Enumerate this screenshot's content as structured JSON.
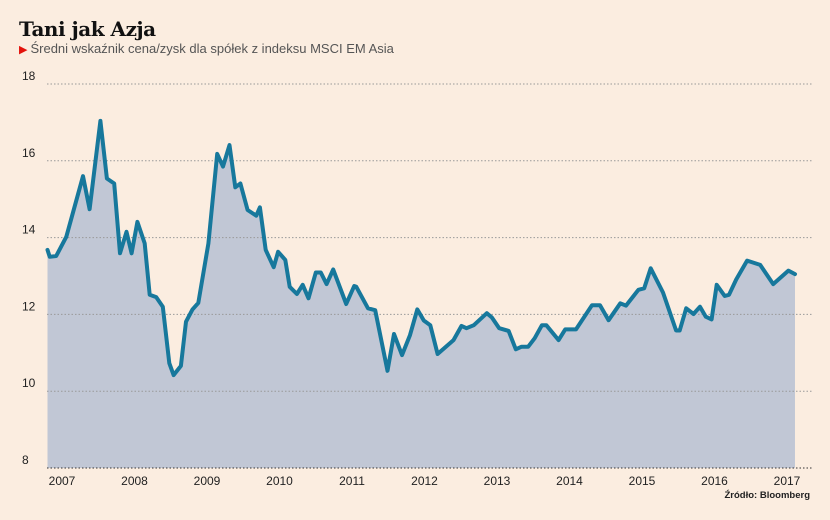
{
  "title": "Tani jak Azja",
  "subtitle": "Średni wskaźnik cena/zysk dla spółek z indeksu MSCI EM Asia",
  "source": "Źródło: Bloomberg",
  "colors": {
    "line": "#17789c",
    "fill": "#c1c7d5",
    "background": "#fbede0",
    "marker": "#e3120b"
  },
  "chart_data": {
    "type": "area",
    "title": "Tani jak Azja",
    "xlabel": "",
    "ylabel": "",
    "ylim": [
      8,
      18
    ],
    "xlim": [
      2006.8,
      2017.11
    ],
    "yticks": [
      "8",
      "10",
      "12",
      "14",
      "16",
      "18"
    ],
    "xticks": [
      "2007",
      "2008",
      "2009",
      "2010",
      "2011",
      "2012",
      "2013",
      "2014",
      "2015",
      "2016",
      "2017"
    ],
    "grid": true,
    "points": [
      [
        2006.8,
        13.68
      ],
      [
        2006.83,
        13.5
      ],
      [
        2006.92,
        13.52
      ],
      [
        2007.06,
        14.02
      ],
      [
        2007.29,
        15.6
      ],
      [
        2007.38,
        14.74
      ],
      [
        2007.53,
        17.04
      ],
      [
        2007.62,
        15.54
      ],
      [
        2007.72,
        15.41
      ],
      [
        2007.8,
        13.59
      ],
      [
        2007.89,
        14.15
      ],
      [
        2007.96,
        13.59
      ],
      [
        2008.04,
        14.41
      ],
      [
        2008.14,
        13.85
      ],
      [
        2008.21,
        12.51
      ],
      [
        2008.3,
        12.45
      ],
      [
        2008.39,
        12.2
      ],
      [
        2008.48,
        10.73
      ],
      [
        2008.54,
        10.42
      ],
      [
        2008.64,
        10.66
      ],
      [
        2008.71,
        11.81
      ],
      [
        2008.8,
        12.13
      ],
      [
        2008.88,
        12.3
      ],
      [
        2009.02,
        13.85
      ],
      [
        2009.14,
        16.18
      ],
      [
        2009.22,
        15.85
      ],
      [
        2009.31,
        16.41
      ],
      [
        2009.39,
        15.31
      ],
      [
        2009.46,
        15.41
      ],
      [
        2009.56,
        14.72
      ],
      [
        2009.68,
        14.57
      ],
      [
        2009.73,
        14.79
      ],
      [
        2009.81,
        13.68
      ],
      [
        2009.92,
        13.23
      ],
      [
        2009.98,
        13.63
      ],
      [
        2010.08,
        13.42
      ],
      [
        2010.14,
        12.72
      ],
      [
        2010.24,
        12.53
      ],
      [
        2010.32,
        12.77
      ],
      [
        2010.4,
        12.42
      ],
      [
        2010.5,
        13.09
      ],
      [
        2010.57,
        13.09
      ],
      [
        2010.65,
        12.79
      ],
      [
        2010.74,
        13.17
      ],
      [
        2010.92,
        12.27
      ],
      [
        2011.03,
        12.74
      ],
      [
        2011.06,
        12.72
      ],
      [
        2011.22,
        12.16
      ],
      [
        2011.32,
        12.11
      ],
      [
        2011.49,
        10.53
      ],
      [
        2011.58,
        11.49
      ],
      [
        2011.69,
        10.94
      ],
      [
        2011.8,
        11.46
      ],
      [
        2011.9,
        12.13
      ],
      [
        2011.99,
        11.84
      ],
      [
        2012.08,
        11.72
      ],
      [
        2012.18,
        10.97
      ],
      [
        2012.4,
        11.33
      ],
      [
        2012.51,
        11.7
      ],
      [
        2012.58,
        11.64
      ],
      [
        2012.68,
        11.72
      ],
      [
        2012.86,
        12.03
      ],
      [
        2012.93,
        11.92
      ],
      [
        2013.03,
        11.64
      ],
      [
        2013.16,
        11.57
      ],
      [
        2013.26,
        11.09
      ],
      [
        2013.34,
        11.16
      ],
      [
        2013.43,
        11.16
      ],
      [
        2013.52,
        11.38
      ],
      [
        2013.62,
        11.72
      ],
      [
        2013.68,
        11.72
      ],
      [
        2013.85,
        11.33
      ],
      [
        2013.94,
        11.61
      ],
      [
        2014.09,
        11.61
      ],
      [
        2014.31,
        12.24
      ],
      [
        2014.42,
        12.24
      ],
      [
        2014.54,
        11.85
      ],
      [
        2014.7,
        12.29
      ],
      [
        2014.78,
        12.23
      ],
      [
        2014.95,
        12.64
      ],
      [
        2015.03,
        12.68
      ],
      [
        2015.12,
        13.2
      ],
      [
        2015.29,
        12.57
      ],
      [
        2015.47,
        11.58
      ],
      [
        2015.52,
        11.58
      ],
      [
        2015.61,
        12.16
      ],
      [
        2015.71,
        12.01
      ],
      [
        2015.8,
        12.2
      ],
      [
        2015.88,
        11.94
      ],
      [
        2015.96,
        11.87
      ],
      [
        2016.03,
        12.77
      ],
      [
        2016.14,
        12.48
      ],
      [
        2016.2,
        12.51
      ],
      [
        2016.3,
        12.91
      ],
      [
        2016.45,
        13.4
      ],
      [
        2016.63,
        13.29
      ],
      [
        2016.81,
        12.79
      ],
      [
        2017.02,
        13.14
      ],
      [
        2017.11,
        13.05
      ]
    ]
  }
}
